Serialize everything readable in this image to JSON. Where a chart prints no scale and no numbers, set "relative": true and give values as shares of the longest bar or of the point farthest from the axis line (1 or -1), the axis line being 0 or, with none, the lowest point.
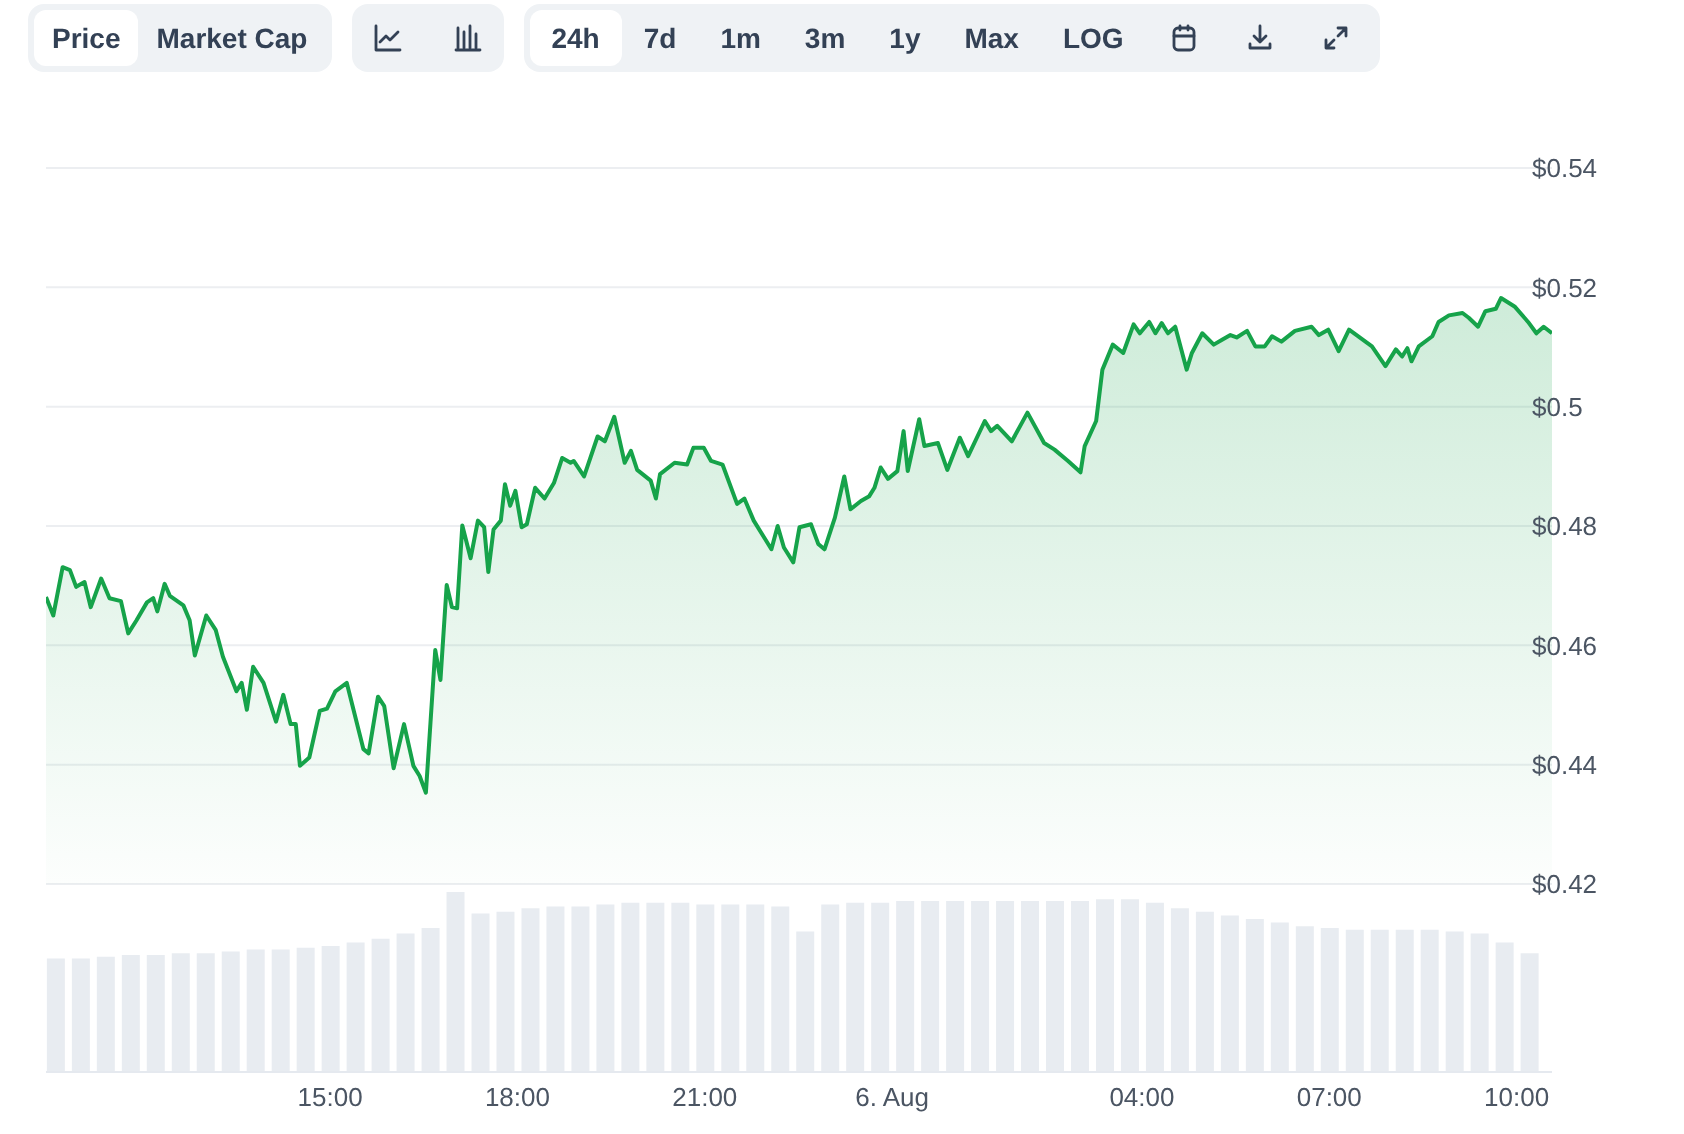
{
  "chart_data": [
    {
      "type": "area",
      "annotations": [
        "Price",
        "Market Cap",
        "24h",
        "7d",
        "1m",
        "3m",
        "1y",
        "Max",
        "LOG"
      ],
      "color": "#16a34a",
      "grid": "y",
      "tick_labels": "y",
      "xlim": [
        "--08-05T10:27",
        "--08-06T10:34"
      ],
      "ylim": [
        0.42,
        0.54
      ],
      "yticks": [
        {
          "value": 0.42,
          "label": "$0.42"
        },
        {
          "value": 0.44,
          "label": "$0.44"
        },
        {
          "value": 0.46,
          "label": "$0.46"
        },
        {
          "value": 0.48,
          "label": "$0.48"
        },
        {
          "value": 0.5,
          "label": "$0.5"
        },
        {
          "value": 0.52,
          "label": "$0.52"
        },
        {
          "value": 0.54,
          "label": "$0.54"
        }
      ],
      "x": [
        "--08-05T10:27",
        "--08-05T10:34",
        "--08-05T10:43",
        "--08-05T10:50",
        "--08-05T10:56",
        "--08-05T11:04",
        "--08-05T11:10",
        "--08-05T11:20",
        "--08-05T11:28",
        "--08-05T11:39",
        "--08-05T11:46",
        "--08-05T11:54",
        "--08-05T12:04",
        "--08-05T12:10",
        "--08-05T12:14",
        "--08-05T12:21",
        "--08-05T12:26",
        "--08-05T12:39",
        "--08-05T12:45",
        "--08-05T12:50",
        "--08-05T13:01",
        "--08-05T13:10",
        "--08-05T13:17",
        "--08-05T13:30",
        "--08-05T13:35",
        "--08-05T13:40",
        "--08-05T13:46",
        "--08-05T13:56",
        "--08-05T14:08",
        "--08-05T14:15",
        "--08-05T14:22",
        "--08-05T14:27",
        "--08-05T14:31",
        "--08-05T14:40",
        "--08-05T14:50",
        "--08-05T14:57",
        "--08-05T15:05",
        "--08-05T15:16",
        "--08-05T15:32",
        "--08-05T15:37",
        "--08-05T15:46",
        "--08-05T15:52",
        "--08-05T16:01",
        "--08-05T16:11",
        "--08-05T16:20",
        "--08-05T16:26",
        "--08-05T16:32",
        "--08-05T16:41",
        "--08-05T16:46",
        "--08-05T16:52",
        "--08-05T16:57",
        "--08-05T17:02",
        "--08-05T17:07",
        "--08-05T17:15",
        "--08-05T17:22",
        "--08-05T17:28",
        "--08-05T17:32",
        "--08-05T17:37",
        "--08-05T17:44",
        "--08-05T17:48",
        "--08-05T17:53",
        "--08-05T17:58",
        "--08-05T18:04",
        "--08-05T18:09",
        "--08-05T18:17",
        "--08-05T18:26",
        "--08-05T18:35",
        "--08-05T18:43",
        "--08-05T18:51",
        "--08-05T18:54",
        "--08-05T19:04",
        "--08-05T19:17",
        "--08-05T19:24",
        "--08-05T19:33",
        "--08-05T19:43",
        "--08-05T19:49",
        "--08-05T19:55",
        "--08-05T20:08",
        "--08-05T20:13",
        "--08-05T20:17",
        "--08-05T20:31",
        "--08-05T20:43",
        "--08-05T20:49",
        "--08-05T20:59",
        "--08-05T21:06",
        "--08-05T21:17",
        "--08-05T21:31",
        "--08-05T21:38",
        "--08-05T21:47",
        "--08-05T22:04",
        "--08-05T22:10",
        "--08-05T22:16",
        "--08-05T22:25",
        "--08-05T22:31",
        "--08-05T22:42",
        "--08-05T22:49",
        "--08-05T22:55",
        "--08-05T23:05",
        "--08-05T23:14",
        "--08-05T23:20",
        "--08-05T23:30",
        "--08-05T23:38",
        "--08-05T23:43",
        "--08-05T23:49",
        "--08-05T23:56",
        "--08-06T00:05",
        "--08-06T00:11",
        "--08-06T00:15",
        "--08-06T00:26",
        "--08-06T00:31",
        "--08-06T00:44",
        "--08-06T00:53",
        "--08-06T01:05",
        "--08-06T01:13",
        "--08-06T01:29",
        "--08-06T01:35",
        "--08-06T01:41",
        "--08-06T01:55",
        "--08-06T02:10",
        "--08-06T02:26",
        "--08-06T02:36",
        "--08-06T02:49",
        "--08-06T03:01",
        "--08-06T03:05",
        "--08-06T03:16",
        "--08-06T03:22",
        "--08-06T03:32",
        "--08-06T03:42",
        "--08-06T03:52",
        "--08-06T03:58",
        "--08-06T04:07",
        "--08-06T04:13",
        "--08-06T04:19",
        "--08-06T04:25",
        "--08-06T04:32",
        "--08-06T04:43",
        "--08-06T04:48",
        "--08-06T04:58",
        "--08-06T05:09",
        "--08-06T05:17",
        "--08-06T05:25",
        "--08-06T05:31",
        "--08-06T05:41",
        "--08-06T05:49",
        "--08-06T05:58",
        "--08-06T06:05",
        "--08-06T06:14",
        "--08-06T06:27",
        "--08-06T06:43",
        "--08-06T06:50",
        "--08-06T06:59",
        "--08-06T07:09",
        "--08-06T07:19",
        "--08-06T07:41",
        "--08-06T07:54",
        "--08-06T08:04",
        "--08-06T08:10",
        "--08-06T08:15",
        "--08-06T08:19",
        "--08-06T08:26",
        "--08-06T08:39",
        "--08-06T08:45",
        "--08-06T08:55",
        "--08-06T09:08",
        "--08-06T09:14",
        "--08-06T09:23",
        "--08-06T09:30",
        "--08-06T09:40",
        "--08-06T09:45",
        "--08-06T09:58",
        "--08-06T10:11",
        "--08-06T10:19",
        "--08-06T10:26",
        "--08-06T10:34"
      ],
      "values": [
        0.4681,
        0.465,
        0.4731,
        0.4726,
        0.4698,
        0.4706,
        0.4664,
        0.4712,
        0.4679,
        0.4674,
        0.462,
        0.4642,
        0.4672,
        0.4679,
        0.4657,
        0.4703,
        0.4683,
        0.4667,
        0.4642,
        0.4583,
        0.465,
        0.4626,
        0.4581,
        0.4523,
        0.4537,
        0.4492,
        0.4564,
        0.4537,
        0.4472,
        0.4517,
        0.4468,
        0.4468,
        0.4398,
        0.4412,
        0.449,
        0.4494,
        0.4523,
        0.4537,
        0.4426,
        0.4419,
        0.4514,
        0.4498,
        0.4394,
        0.4468,
        0.4398,
        0.4381,
        0.4353,
        0.4592,
        0.4542,
        0.4701,
        0.4664,
        0.4662,
        0.4801,
        0.4746,
        0.4809,
        0.4798,
        0.4723,
        0.4794,
        0.4809,
        0.487,
        0.4834,
        0.4859,
        0.4798,
        0.4803,
        0.4864,
        0.4846,
        0.4872,
        0.4914,
        0.4906,
        0.4909,
        0.4883,
        0.495,
        0.4942,
        0.4983,
        0.4906,
        0.4926,
        0.4894,
        0.4876,
        0.4846,
        0.4887,
        0.4906,
        0.4903,
        0.4931,
        0.4931,
        0.4909,
        0.4903,
        0.4837,
        0.4846,
        0.4809,
        0.4761,
        0.48,
        0.4764,
        0.4739,
        0.4798,
        0.4803,
        0.477,
        0.4761,
        0.4814,
        0.4883,
        0.4828,
        0.4842,
        0.485,
        0.4864,
        0.4898,
        0.4879,
        0.4892,
        0.4959,
        0.4892,
        0.4979,
        0.4934,
        0.4939,
        0.4894,
        0.4948,
        0.4917,
        0.4976,
        0.4959,
        0.4968,
        0.4942,
        0.499,
        0.4939,
        0.4928,
        0.4909,
        0.489,
        0.4934,
        0.4976,
        0.5062,
        0.5104,
        0.509,
        0.5138,
        0.5123,
        0.5142,
        0.5123,
        0.514,
        0.5123,
        0.5134,
        0.5062,
        0.509,
        0.5123,
        0.5104,
        0.5112,
        0.512,
        0.5116,
        0.5127,
        0.5101,
        0.5101,
        0.5118,
        0.5109,
        0.5127,
        0.5134,
        0.512,
        0.5129,
        0.5093,
        0.5129,
        0.5101,
        0.5068,
        0.5096,
        0.5084,
        0.5098,
        0.5076,
        0.5101,
        0.5118,
        0.5142,
        0.5153,
        0.5157,
        0.5149,
        0.5134,
        0.516,
        0.5164,
        0.5182,
        0.5168,
        0.5142,
        0.5123,
        0.5134,
        0.5123
      ]
    },
    {
      "type": "bar",
      "relative": true,
      "color": "#e8ecf1",
      "tick_labels": "x",
      "xlim": [
        "--08-05T10:27",
        "--08-06T10:34"
      ],
      "xticks": [
        {
          "value": "--08-05T15:00",
          "label": "15:00"
        },
        {
          "value": "--08-05T18:00",
          "label": "18:00"
        },
        {
          "value": "--08-05T21:00",
          "label": "21:00"
        },
        {
          "value": "--08-06T00:00",
          "label": "6. Aug"
        },
        {
          "value": "--08-06T04:00",
          "label": "04:00"
        },
        {
          "value": "--08-06T07:00",
          "label": "07:00"
        },
        {
          "value": "--08-06T10:00",
          "label": "10:00"
        }
      ],
      "x": [
        "--08-05T10:36",
        "--08-05T11:00",
        "--08-05T11:24",
        "--08-05T11:48",
        "--08-05T12:12",
        "--08-05T12:36",
        "--08-05T13:00",
        "--08-05T13:24",
        "--08-05T13:48",
        "--08-05T14:12",
        "--08-05T14:36",
        "--08-05T15:00",
        "--08-05T15:24",
        "--08-05T15:48",
        "--08-05T16:12",
        "--08-05T16:36",
        "--08-05T17:00",
        "--08-05T17:24",
        "--08-05T17:48",
        "--08-05T18:12",
        "--08-05T18:36",
        "--08-05T19:00",
        "--08-05T19:24",
        "--08-05T19:48",
        "--08-05T20:12",
        "--08-05T20:36",
        "--08-05T21:00",
        "--08-05T21:24",
        "--08-05T21:48",
        "--08-05T22:12",
        "--08-05T22:36",
        "--08-05T23:00",
        "--08-05T23:24",
        "--08-05T23:48",
        "--08-06T00:12",
        "--08-06T00:36",
        "--08-06T01:00",
        "--08-06T01:24",
        "--08-06T01:48",
        "--08-06T02:12",
        "--08-06T02:36",
        "--08-06T03:00",
        "--08-06T03:24",
        "--08-06T03:48",
        "--08-06T04:12",
        "--08-06T04:36",
        "--08-06T05:00",
        "--08-06T05:24",
        "--08-06T05:48",
        "--08-06T06:12",
        "--08-06T06:36",
        "--08-06T07:00",
        "--08-06T07:24",
        "--08-06T07:48",
        "--08-06T08:12",
        "--08-06T08:36",
        "--08-06T09:00",
        "--08-06T09:24",
        "--08-06T09:48",
        "--08-06T10:12"
      ],
      "values": [
        0.63,
        0.63,
        0.64,
        0.65,
        0.65,
        0.66,
        0.66,
        0.67,
        0.68,
        0.68,
        0.69,
        0.7,
        0.72,
        0.74,
        0.77,
        0.8,
        1,
        0.88,
        0.89,
        0.91,
        0.92,
        0.92,
        0.93,
        0.94,
        0.94,
        0.94,
        0.93,
        0.93,
        0.93,
        0.92,
        0.78,
        0.93,
        0.94,
        0.94,
        0.95,
        0.95,
        0.95,
        0.95,
        0.95,
        0.95,
        0.95,
        0.95,
        0.96,
        0.96,
        0.94,
        0.91,
        0.89,
        0.87,
        0.85,
        0.83,
        0.81,
        0.8,
        0.79,
        0.79,
        0.79,
        0.79,
        0.78,
        0.77,
        0.72,
        0.66
      ]
    }
  ]
}
